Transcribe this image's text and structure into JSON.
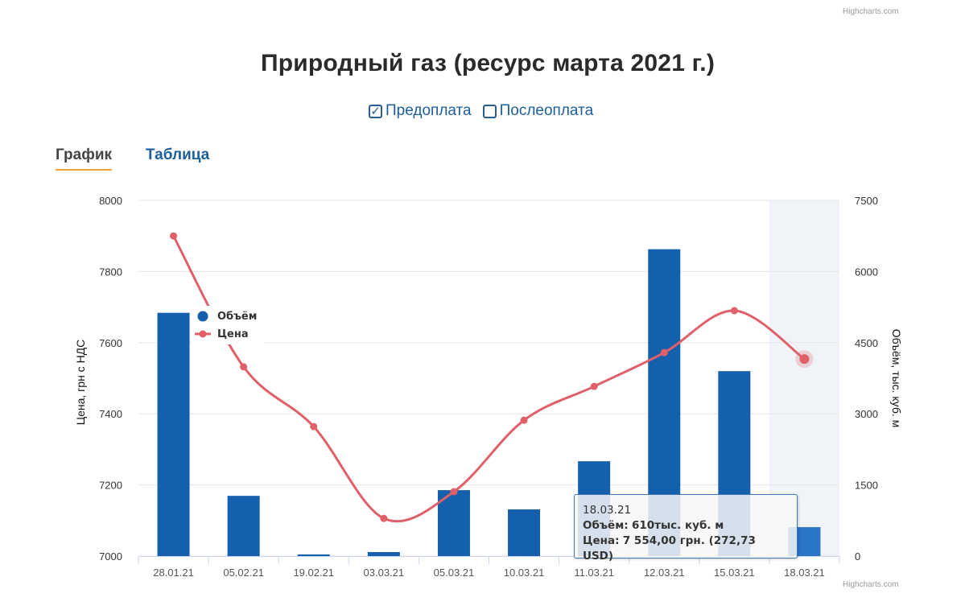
{
  "credit_top": "Highcharts.com",
  "credit_bottom": "Highcharts.com",
  "title": "Природный газ (ресурс марта 2021 г.)",
  "filters": [
    {
      "label": "Предоплата",
      "checked": true
    },
    {
      "label": "Послеоплата",
      "checked": false
    }
  ],
  "tabs": [
    {
      "label": "График",
      "active": true
    },
    {
      "label": "Таблица",
      "active": false
    }
  ],
  "colors": {
    "volume": "#1560ad",
    "price": "#e0606a",
    "highlight_band": "#f0f3f8"
  },
  "tooltip": {
    "date": "18.03.21",
    "volume_label": "Объём:",
    "volume_value": "610тыс. куб. м",
    "price_label": "Цена:",
    "price_value": "7 554,00 грн. (272,73 USD)"
  },
  "chart_data": {
    "type": "bar+line",
    "categories": [
      "28.01.21",
      "05.02.21",
      "19.02.21",
      "03.03.21",
      "05.03.21",
      "10.03.21",
      "11.03.21",
      "12.03.21",
      "15.03.21",
      "18.03.21"
    ],
    "series": [
      {
        "name": "Объём",
        "type": "bar",
        "axis": "right",
        "values": [
          5130,
          1270,
          35,
          85,
          1390,
          985,
          2000,
          6470,
          3900,
          610
        ]
      },
      {
        "name": "Цена",
        "type": "spline",
        "axis": "left",
        "values": [
          7900,
          7532,
          7364,
          7106,
          7181,
          7382,
          7477,
          7572,
          7690,
          7554
        ]
      }
    ],
    "ylabel_left": "Цена, грн с НДС",
    "ylabel_right": "Объём, тыс. куб. м",
    "ylim_left": [
      7000,
      8000
    ],
    "yticks_left": [
      "8000",
      "7800",
      "7600",
      "7400",
      "7200",
      "7000"
    ],
    "ylim_right": [
      0,
      7500
    ],
    "yticks_right": [
      "7500",
      "6000",
      "4500",
      "3000",
      "1500",
      "0"
    ],
    "highlighted_category": "18.03.21",
    "legend_placement": "top-left inside",
    "grid": true
  }
}
